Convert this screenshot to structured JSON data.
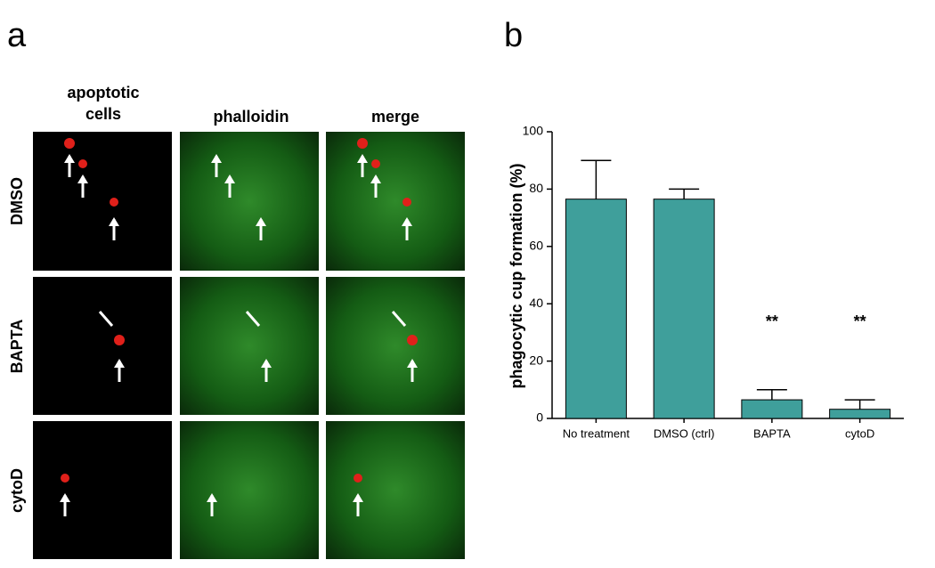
{
  "panel_labels": [
    "a",
    "b"
  ],
  "panel_a": {
    "column_headers": [
      "apoptotic\ncells",
      "phalloidin",
      "merge"
    ],
    "row_labels": [
      "DMSO",
      "BAPTA",
      "cytoD"
    ]
  },
  "chart_data": {
    "type": "bar",
    "ylabel": "phagocytic cup formation (%)",
    "categories": [
      "No treatment",
      "DMSO (ctrl)",
      "BAPTA",
      "cytoD"
    ],
    "values": [
      76.5,
      76.5,
      6.5,
      3.2
    ],
    "errors": [
      13.5,
      3.5,
      3.5,
      3.3
    ],
    "annotations": [
      null,
      null,
      "**",
      "**"
    ],
    "color": "#3f9f9b",
    "ylim": [
      0,
      100
    ],
    "yticks": [
      0,
      20,
      40,
      60,
      80,
      100
    ]
  }
}
